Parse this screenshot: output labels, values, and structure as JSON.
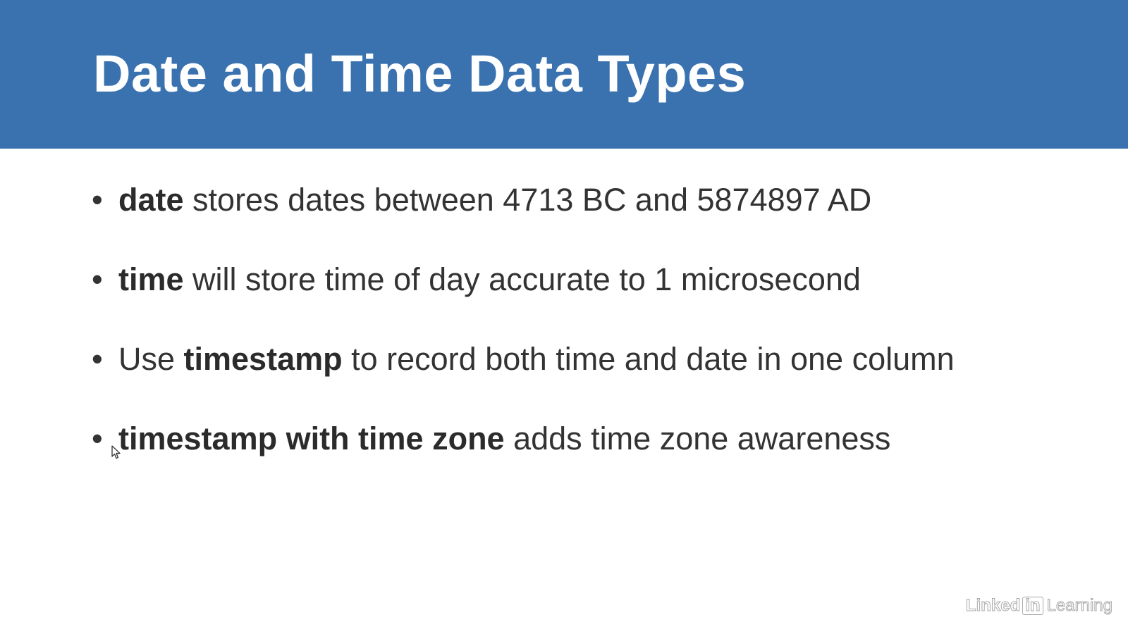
{
  "slide": {
    "title": "Date and Time Data Types",
    "bullet_symbol": "•",
    "bullets": [
      {
        "bold_prefix": "",
        "bold": "date",
        "rest": " stores dates between 4713 BC and 5874897 AD"
      },
      {
        "bold_prefix": "",
        "bold": "time",
        "rest": " will store time of day accurate to 1 microsecond"
      },
      {
        "plain_prefix": "Use ",
        "bold": "timestamp",
        "rest": " to record both time and date in one column"
      },
      {
        "plain_prefix": "",
        "bold": "timestamp with time zone",
        "rest": " adds time zone awareness"
      }
    ]
  },
  "watermark": {
    "linked": "Linked",
    "in": "in",
    "learning": "Learning"
  },
  "colors": {
    "header_bg": "#3a72b0",
    "title_text": "#ffffff",
    "body_text": "#333333"
  }
}
